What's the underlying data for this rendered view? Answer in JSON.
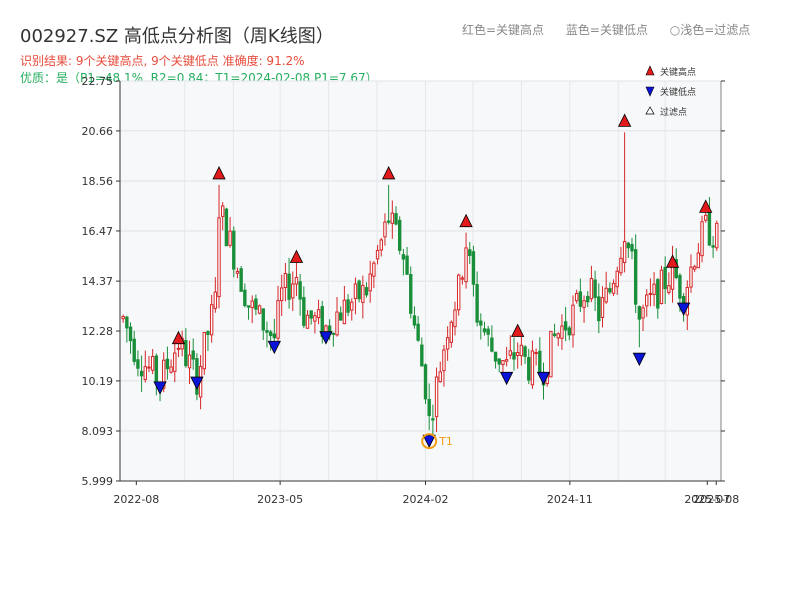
{
  "header": {
    "title": "002927.SZ 高低点分析图（周K线图）",
    "legend_red": "红色=关键高点",
    "legend_blue": "蓝色=关键低点",
    "legend_light": "○浅色=过滤点",
    "result": "识别结果: 9个关键高点, 9个关键低点  准确度: 91.2%",
    "quality": "优质：是（P1=48.1%, R2=0.84；T1=2024-02-08 P1=7.67）"
  },
  "colors": {
    "up": "#d62728",
    "down": "#1a8f3a",
    "high_marker": "#e31a1c",
    "low_marker": "#0a14d8",
    "t1": "#f39c12"
  },
  "chart_data": {
    "type": "candlestick",
    "y_ticks": [
      "5.999",
      "8.093",
      "10.19",
      "12.28",
      "14.37",
      "16.47",
      "18.56",
      "20.66",
      "22.75"
    ],
    "ylim": [
      5.999,
      22.75
    ],
    "x_ticks": [
      "2022-08",
      "2023-05",
      "2024-02",
      "2024-11",
      "2025-07",
      "2025-08"
    ],
    "xlim": [
      "2022-07-01",
      "2025-08-15"
    ],
    "legend": {
      "high": "关键高点",
      "low": "关键低点",
      "filtered": "过滤点"
    },
    "key_highs": [
      {
        "date": "2022-10-20",
        "value": 12.0
      },
      {
        "date": "2023-01-05",
        "value": 18.9
      },
      {
        "date": "2023-06-01",
        "value": 15.4
      },
      {
        "date": "2023-11-23",
        "value": 18.9
      },
      {
        "date": "2024-04-18",
        "value": 16.9
      },
      {
        "date": "2024-07-25",
        "value": 12.3
      },
      {
        "date": "2025-02-13",
        "value": 21.1
      },
      {
        "date": "2025-05-15",
        "value": 15.2
      },
      {
        "date": "2025-07-17",
        "value": 17.5
      }
    ],
    "key_lows": [
      {
        "date": "2022-09-15",
        "value": 9.9
      },
      {
        "date": "2022-11-24",
        "value": 10.1
      },
      {
        "date": "2023-04-20",
        "value": 11.6
      },
      {
        "date": "2023-07-27",
        "value": 12.0
      },
      {
        "date": "2024-02-08",
        "value": 7.67
      },
      {
        "date": "2024-07-04",
        "value": 10.3
      },
      {
        "date": "2024-09-12",
        "value": 10.3
      },
      {
        "date": "2025-03-13",
        "value": 11.1
      },
      {
        "date": "2025-06-05",
        "value": 13.2
      }
    ],
    "t1": {
      "label": "T1",
      "date": "2024-02-08",
      "value": 7.67
    },
    "anchor_weeks": [
      [
        "2022-07-07",
        12.8
      ],
      [
        "2022-08-04",
        11.2
      ],
      [
        "2022-09-15",
        10.2
      ],
      [
        "2022-10-20",
        11.8
      ],
      [
        "2022-11-24",
        10.3
      ],
      [
        "2022-12-29",
        13.5
      ],
      [
        "2023-01-05",
        17.5
      ],
      [
        "2023-02-02",
        15.5
      ],
      [
        "2023-03-02",
        13.4
      ],
      [
        "2023-04-20",
        12.0
      ],
      [
        "2023-05-04",
        13.8
      ],
      [
        "2023-06-01",
        14.6
      ],
      [
        "2023-06-15",
        13.0
      ],
      [
        "2023-07-27",
        12.4
      ],
      [
        "2023-08-17",
        13.0
      ],
      [
        "2023-10-12",
        14.0
      ],
      [
        "2023-11-23",
        17.0
      ],
      [
        "2023-12-21",
        15.5
      ],
      [
        "2024-01-11",
        12.5
      ],
      [
        "2024-02-01",
        10.0
      ],
      [
        "2024-02-08",
        8.5
      ],
      [
        "2024-02-22",
        10.0
      ],
      [
        "2024-03-14",
        12.5
      ],
      [
        "2024-04-04",
        14.0
      ],
      [
        "2024-04-18",
        16.0
      ],
      [
        "2024-05-09",
        13.0
      ],
      [
        "2024-06-06",
        11.5
      ],
      [
        "2024-07-04",
        10.8
      ],
      [
        "2024-07-25",
        11.5
      ],
      [
        "2024-08-15",
        10.8
      ],
      [
        "2024-09-12",
        10.7
      ],
      [
        "2024-10-03",
        12.0
      ],
      [
        "2024-11-07",
        13.0
      ],
      [
        "2024-12-05",
        14.2
      ],
      [
        "2024-12-26",
        13.0
      ],
      [
        "2025-01-16",
        14.0
      ],
      [
        "2025-02-13",
        16.5
      ],
      [
        "2025-02-27",
        15.0
      ],
      [
        "2025-03-13",
        12.8
      ],
      [
        "2025-04-03",
        13.5
      ],
      [
        "2025-05-15",
        14.8
      ],
      [
        "2025-06-05",
        13.8
      ],
      [
        "2025-06-26",
        15.5
      ],
      [
        "2025-07-17",
        16.6
      ],
      [
        "2025-08-07",
        16.2
      ]
    ]
  }
}
